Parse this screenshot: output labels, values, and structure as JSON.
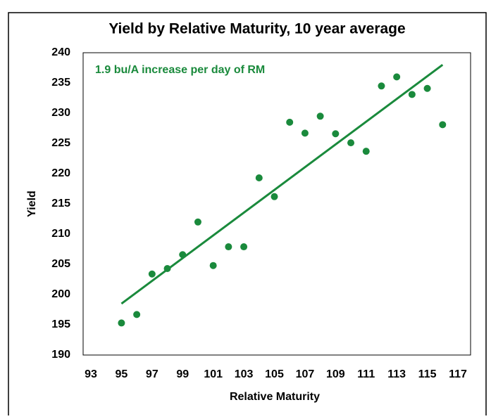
{
  "chart_data": {
    "type": "scatter",
    "title": "Yield by Relative Maturity, 10 year average",
    "x_label": "Relative Maturity",
    "y_label": "Yield",
    "annotation": "1.9 bu/A increase per day of RM",
    "color": "#1a8a3c",
    "x": [
      95,
      96,
      97,
      98,
      99,
      100,
      101,
      102,
      103,
      104,
      105,
      106,
      107,
      108,
      109,
      110,
      111,
      112,
      113,
      114,
      115,
      116
    ],
    "values": [
      195.3,
      196.7,
      203.4,
      204.3,
      206.6,
      212.0,
      204.8,
      207.9,
      207.9,
      219.3,
      216.2,
      228.5,
      226.7,
      229.5,
      226.6,
      225.1,
      223.7,
      234.5,
      236.0,
      233.1,
      234.1,
      228.1
    ],
    "trendline": {
      "x": [
        95,
        116
      ],
      "values": [
        198.5,
        238.0
      ]
    },
    "xlim": [
      93,
      117
    ],
    "xticks": [
      93,
      95,
      97,
      99,
      101,
      103,
      105,
      107,
      109,
      111,
      113,
      115,
      117
    ],
    "ylim": [
      190,
      240
    ],
    "yticks": [
      190,
      195,
      200,
      205,
      210,
      215,
      220,
      225,
      230,
      235,
      240
    ]
  }
}
